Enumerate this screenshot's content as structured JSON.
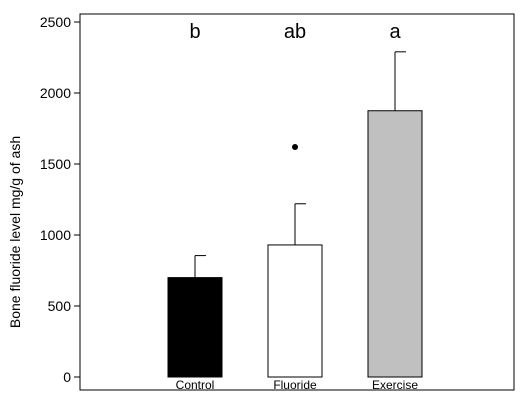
{
  "chart_data": {
    "type": "bar",
    "title": "",
    "xlabel": "",
    "ylabel": "Bone fluoride level mg/g of ash",
    "ylim": [
      0,
      2500
    ],
    "yticks": [
      0,
      500,
      1000,
      1500,
      2000,
      2500
    ],
    "ytick_labels": [
      "0",
      "500",
      "1000",
      "1500",
      "2000",
      "2500"
    ],
    "categories": [
      "Control",
      "Fluoride",
      "Exercise"
    ],
    "values": [
      700,
      930,
      1875
    ],
    "error_upper": [
      855,
      1220,
      2290
    ],
    "significance_letters": [
      "b",
      "ab",
      "a"
    ],
    "outliers": [
      {
        "category": "Fluoride",
        "value": 1620
      }
    ],
    "bar_colors": [
      "#000000",
      "#ffffff",
      "#c0c0c0"
    ],
    "grid": false,
    "legend": "none"
  }
}
